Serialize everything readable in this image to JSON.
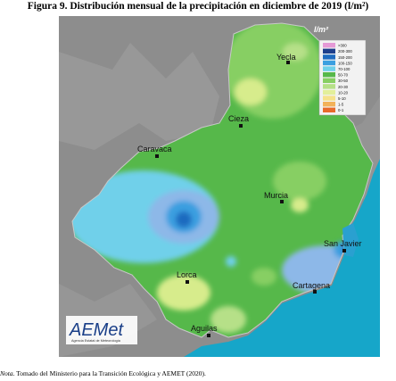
{
  "title": "Figura 9. Distribución mensual de la precipitación en diciembre de 2019 (l/m²)",
  "note": {
    "prefix": "Nota",
    "text": ". Tomado del Ministerio para la Transición Ecológica y AEMET (2020)."
  },
  "legend": {
    "unit": "l/m²",
    "classes": [
      {
        "label": ">300",
        "color": "#e59ad6"
      },
      {
        "label": "200-300",
        "color": "#1e3f8c"
      },
      {
        "label": "150-200",
        "color": "#1f6bbf"
      },
      {
        "label": "100-150",
        "color": "#3b9fe0"
      },
      {
        "label": "70-100",
        "color": "#6fd0ea"
      },
      {
        "label": "50-70",
        "color": "#56b84a"
      },
      {
        "label": "30-50",
        "color": "#87cf63"
      },
      {
        "label": "20-30",
        "color": "#b6e088"
      },
      {
        "label": "10-20",
        "color": "#e3ef9a"
      },
      {
        "label": "5-10",
        "color": "#f6e28a"
      },
      {
        "label": "1-5",
        "color": "#f2b25a"
      },
      {
        "label": "0-1",
        "color": "#e86a2c"
      }
    ]
  },
  "cities": [
    {
      "name": "Yecla"
    },
    {
      "name": "Cieza"
    },
    {
      "name": "Caravaca"
    },
    {
      "name": "Murcia"
    },
    {
      "name": "San Javier"
    },
    {
      "name": "Lorca"
    },
    {
      "name": "Cartagena"
    },
    {
      "name": "Aguilas"
    }
  ],
  "logo": {
    "text": "AEMet",
    "subtitle": "Agencia Estatal de Meteorología"
  },
  "colors": {
    "sea": "#16a6c9",
    "land_outside": "#8d8d8d"
  }
}
